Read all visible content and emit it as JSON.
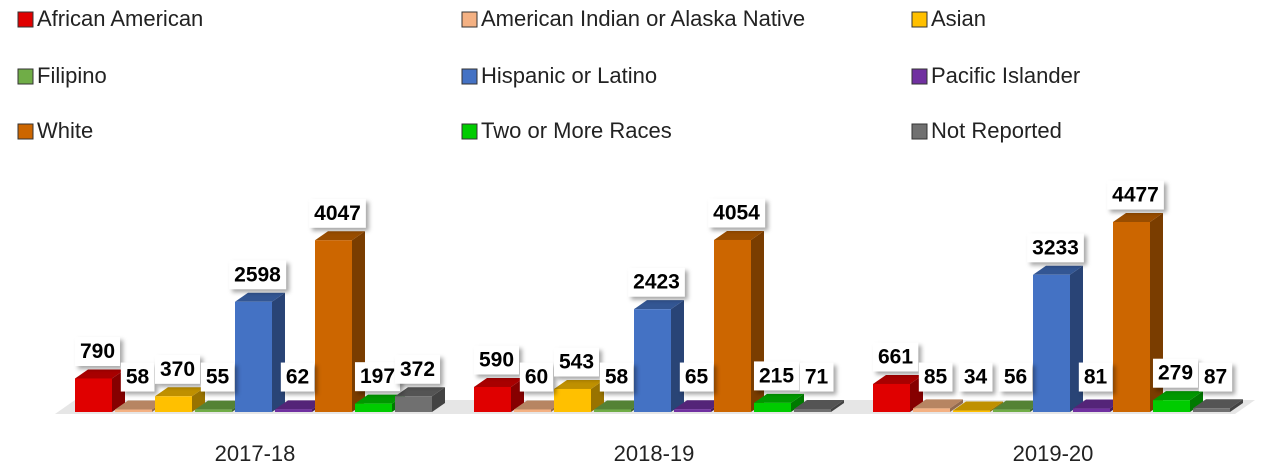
{
  "chart_data": {
    "type": "bar3d",
    "legend": "top",
    "categories": [
      "2017-18",
      "2018-19",
      "2019-20"
    ],
    "series": [
      {
        "name": "African American",
        "color": "#e00000",
        "values": [
          790,
          590,
          661
        ]
      },
      {
        "name": "American Indian or Alaska Native",
        "color": "#f4b183",
        "values": [
          58,
          60,
          85
        ]
      },
      {
        "name": "Asian",
        "color": "#ffc000",
        "values": [
          370,
          543,
          34
        ]
      },
      {
        "name": "Filipino",
        "color": "#70ad47",
        "values": [
          55,
          58,
          56
        ]
      },
      {
        "name": "Hispanic or Latino",
        "color": "#4472c4",
        "values": [
          2598,
          2423,
          3233
        ]
      },
      {
        "name": "Pacific Islander",
        "color": "#7030a0",
        "values": [
          62,
          65,
          81
        ]
      },
      {
        "name": "White",
        "color": "#cc6600",
        "values": [
          4047,
          4054,
          4477
        ]
      },
      {
        "name": "Two or More Races",
        "color": "#00cc00",
        "values": [
          197,
          215,
          279
        ]
      },
      {
        "name": "Not Reported",
        "color": "#707070",
        "values": [
          372,
          71,
          87
        ]
      }
    ]
  }
}
